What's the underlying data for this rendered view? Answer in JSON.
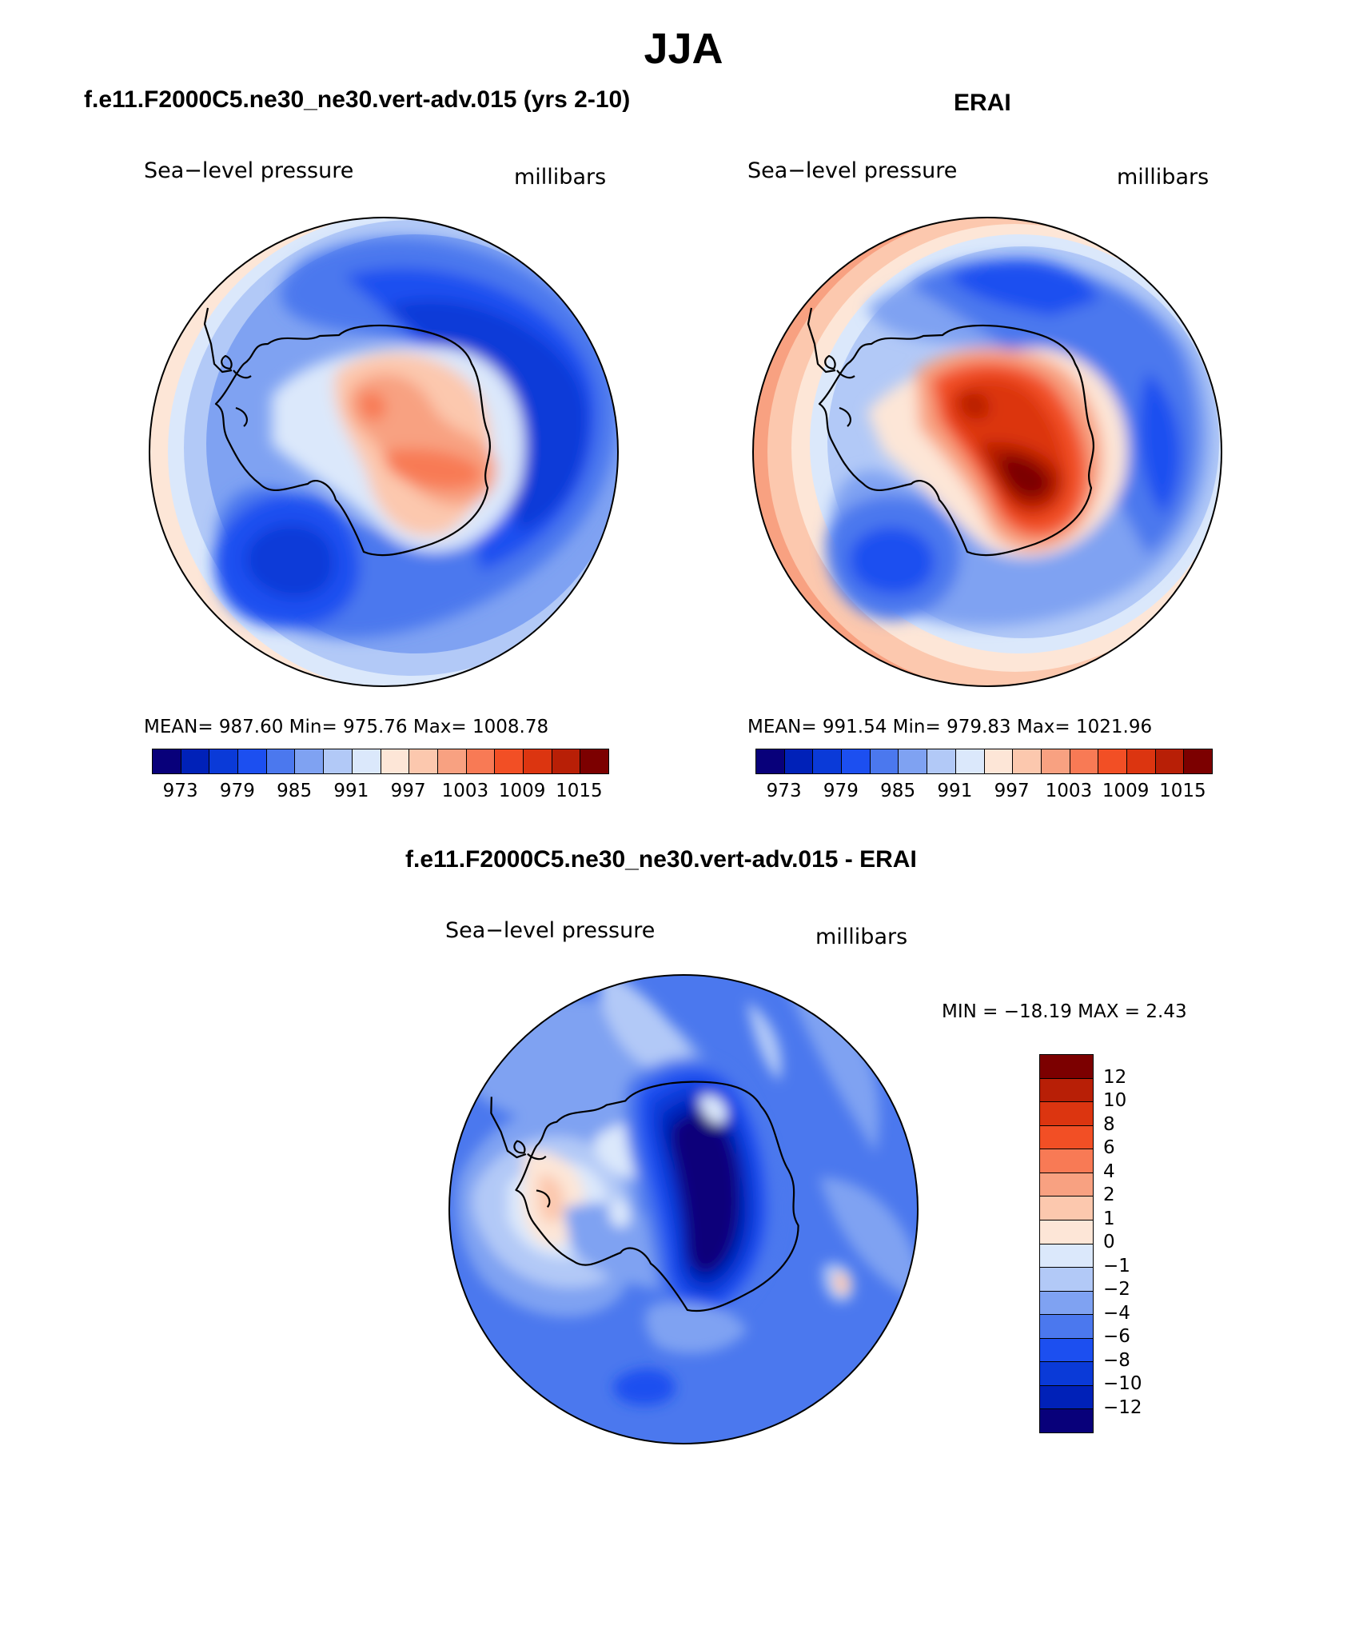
{
  "figure": {
    "season": "JJA"
  },
  "panels": {
    "model": {
      "title": "f.e11.F2000C5.ne30_ne30.vert-adv.015 (yrs 2-10)",
      "variable": "Sea−level pressure",
      "units": "millibars",
      "stats": "MEAN=  987.60    Min=  975.76    Max=  1008.78",
      "colorbar_labels": [
        "973",
        "979",
        "985",
        "991",
        "997",
        "1003",
        "1009",
        "1015"
      ]
    },
    "obs": {
      "title": "ERAI",
      "variable": "Sea−level pressure",
      "units": "millibars",
      "stats": "MEAN=  991.54    Min=  979.83    Max=  1021.96",
      "colorbar_labels": [
        "973",
        "979",
        "985",
        "991",
        "997",
        "1003",
        "1009",
        "1015"
      ]
    },
    "diff": {
      "title": "f.e11.F2000C5.ne30_ne30.vert-adv.015 - ERAI",
      "variable": "Sea−level pressure",
      "units": "millibars",
      "stats": "MIN = −18.19 MAX =     2.43",
      "colorbar_labels": [
        "12",
        "10",
        "8",
        "6",
        "4",
        "2",
        "1",
        "0",
        "−1",
        "−2",
        "−4",
        "−6",
        "−8",
        "−10",
        "−12"
      ]
    }
  },
  "colors": {
    "abs_scale": [
      "#08007a",
      "#0021b8",
      "#0a3ad8",
      "#1c4ff0",
      "#4b78ee",
      "#7fa2f2",
      "#b2c9f7",
      "#dbe8fb",
      "#fde6d7",
      "#fcc8ae",
      "#f8a181",
      "#f87a55",
      "#f24f25",
      "#dc3510",
      "#b81f06",
      "#7c0000"
    ],
    "diff_scale_top_to_bottom": [
      "#7c0000",
      "#b81f06",
      "#dc3510",
      "#f24f25",
      "#f87a55",
      "#f8a181",
      "#fcc8ae",
      "#fde6d7",
      "#dbe8fb",
      "#b2c9f7",
      "#7fa2f2",
      "#4b78ee",
      "#1c4ff0",
      "#0a3ad8",
      "#0021b8",
      "#08007a"
    ]
  }
}
